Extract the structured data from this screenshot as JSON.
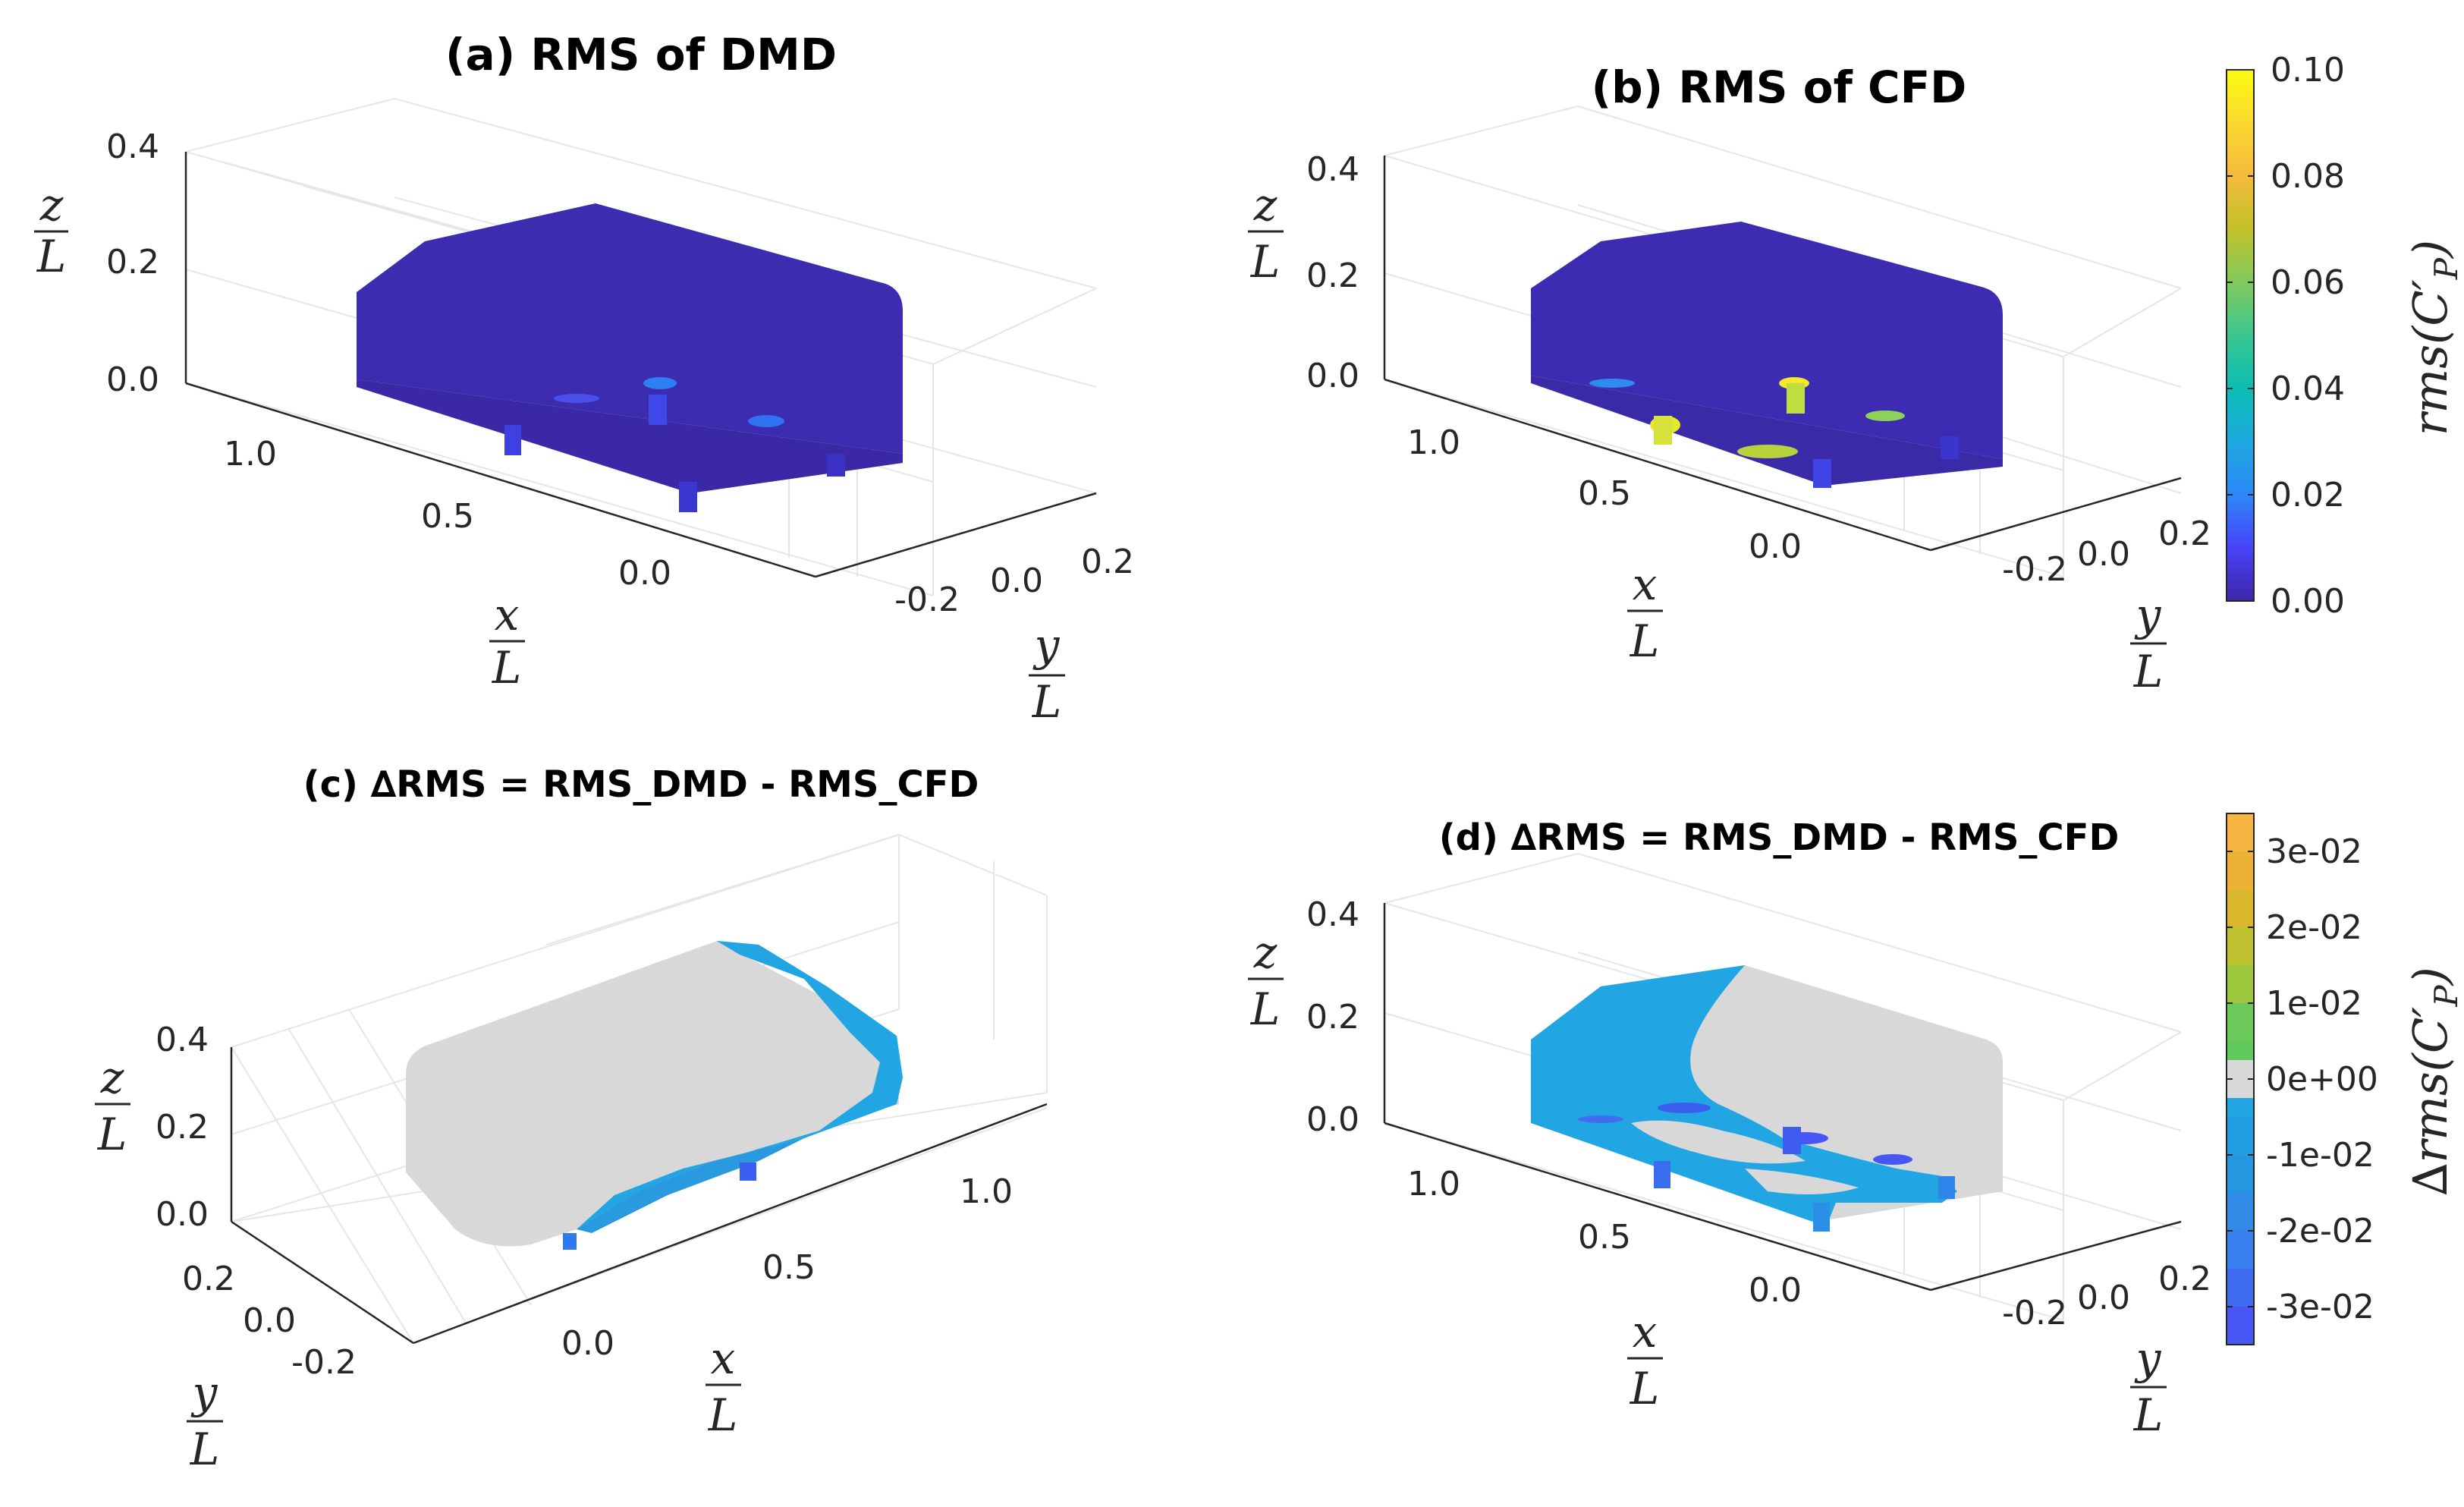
{
  "chart_data": [
    {
      "panel": "a",
      "type": "heatmap",
      "title": "(a) RMS of DMD",
      "quantity": "rms(C'_P)",
      "colormap": "parula",
      "xlabel": "x/L",
      "ylabel": "y/L",
      "zlabel": "z/L",
      "x_ticks": [
        "0.0",
        "0.5",
        "1.0"
      ],
      "y_ticks": [
        "-0.2",
        "0.0",
        "0.2"
      ],
      "z_ticks": [
        "0.0",
        "0.2",
        "0.4"
      ],
      "surface_value": 0.005,
      "hotspot_values": [
        0.02,
        0.03,
        0.025
      ]
    },
    {
      "panel": "b",
      "type": "heatmap",
      "title": "(b) RMS of CFD",
      "quantity": "rms(C'_P)",
      "colormap": "parula",
      "xlabel": "x/L",
      "ylabel": "y/L",
      "zlabel": "z/L",
      "x_ticks": [
        "0.0",
        "0.5",
        "1.0"
      ],
      "y_ticks": [
        "-0.2",
        "0.0",
        "0.2"
      ],
      "z_ticks": [
        "0.0",
        "0.2",
        "0.4"
      ],
      "surface_value": 0.008,
      "hotspot_values": [
        0.1,
        0.09,
        0.07,
        0.06
      ]
    },
    {
      "panel": "c",
      "type": "heatmap",
      "title": "(c) ∆RMS = RMS_DMD - RMS_CFD",
      "quantity": "∆rms(C'_P)",
      "xlabel": "x/L",
      "ylabel": "y/L",
      "zlabel": "z/L",
      "x_ticks": [
        "0.0",
        "0.5",
        "1.0"
      ],
      "y_ticks": [
        "-0.2",
        "0.0",
        "0.2"
      ],
      "z_ticks": [
        "0.0",
        "0.2",
        "0.4"
      ],
      "dominant_value": 0.0,
      "negative_region_value": -0.01
    },
    {
      "panel": "d",
      "type": "heatmap",
      "title": "(d) ∆RMS = RMS_DMD - RMS_CFD",
      "quantity": "∆rms(C'_P)",
      "xlabel": "x/L",
      "ylabel": "y/L",
      "zlabel": "z/L",
      "x_ticks": [
        "0.0",
        "0.5",
        "1.0"
      ],
      "y_ticks": [
        "-0.2",
        "0.0",
        "0.2"
      ],
      "z_ticks": [
        "0.0",
        "0.2",
        "0.4"
      ],
      "dominant_value": 0.0,
      "negative_region_value": -0.01,
      "minimum_value": -0.03
    }
  ],
  "colorbars": {
    "rms": {
      "label": "rms(C'_P)",
      "range": [
        0.0,
        0.1
      ],
      "ticks": [
        "0.00",
        "0.02",
        "0.04",
        "0.06",
        "0.08",
        "0.10"
      ],
      "colors": [
        "#3e26a8",
        "#4743f8",
        "#2e87f7",
        "#1ca9df",
        "#0cbdb4",
        "#3ac690",
        "#82ca5c",
        "#c2c129",
        "#f5ba3c",
        "#fad92f",
        "#f9fb0e"
      ]
    },
    "delta": {
      "label": "∆rms(C'_P)",
      "range": [
        -0.035,
        0.035
      ],
      "ticks": [
        "-3e-02",
        "-2e-02",
        "-1e-02",
        "0e+00",
        "1e-02",
        "2e-02",
        "3e-02"
      ],
      "bands": [
        {
          "from": -0.035,
          "to": -0.03,
          "color": "#4856f5"
        },
        {
          "from": -0.03,
          "to": -0.025,
          "color": "#3f6cf0"
        },
        {
          "from": -0.025,
          "to": -0.02,
          "color": "#3a7ff0"
        },
        {
          "from": -0.02,
          "to": -0.015,
          "color": "#318be7"
        },
        {
          "from": -0.015,
          "to": -0.01,
          "color": "#2596e0"
        },
        {
          "from": -0.01,
          "to": -0.005,
          "color": "#1f9fe0"
        },
        {
          "from": -0.005,
          "to": -0.0025,
          "color": "#22a5e3"
        },
        {
          "from": -0.0025,
          "to": 0.0025,
          "color": "#d8d8d8"
        },
        {
          "from": 0.0025,
          "to": 0.005,
          "color": "#5fc95e"
        },
        {
          "from": 0.005,
          "to": 0.01,
          "color": "#6bc95a"
        },
        {
          "from": 0.01,
          "to": 0.015,
          "color": "#9cc63b"
        },
        {
          "from": 0.015,
          "to": 0.02,
          "color": "#bdc02f"
        },
        {
          "from": 0.02,
          "to": 0.025,
          "color": "#d9b72c"
        },
        {
          "from": 0.025,
          "to": 0.03,
          "color": "#ecb135"
        },
        {
          "from": 0.03,
          "to": 0.035,
          "color": "#f6b641"
        }
      ]
    }
  }
}
